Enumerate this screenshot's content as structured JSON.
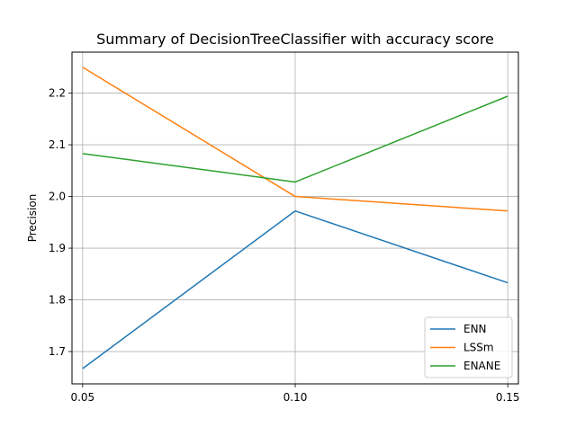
{
  "chart_data": {
    "type": "line",
    "title": "Summary of DecisionTreeClassifier with accuracy score",
    "xlabel": "",
    "ylabel": "Precision",
    "x": [
      0.05,
      0.1,
      0.15
    ],
    "x_tick_labels": [
      "0.05",
      "0.10",
      "0.15"
    ],
    "y_ticks": [
      1.7,
      1.8,
      1.9,
      2.0,
      2.1,
      2.2
    ],
    "y_tick_labels": [
      "1.7",
      "1.8",
      "1.9",
      "2.0",
      "2.1",
      "2.2"
    ],
    "xlim": [
      0.0475,
      0.1525
    ],
    "ylim": [
      1.6375,
      2.2792
    ],
    "grid": true,
    "legend_position": "lower-right",
    "series": [
      {
        "name": "ENN",
        "color": "#1f77b4",
        "values": [
          1.667,
          1.972,
          1.833
        ]
      },
      {
        "name": "LSSm",
        "color": "#ff7f0e",
        "values": [
          2.25,
          2.0,
          1.972
        ]
      },
      {
        "name": "ENANE",
        "color": "#2ca02c",
        "values": [
          2.083,
          2.028,
          2.194
        ]
      }
    ]
  }
}
